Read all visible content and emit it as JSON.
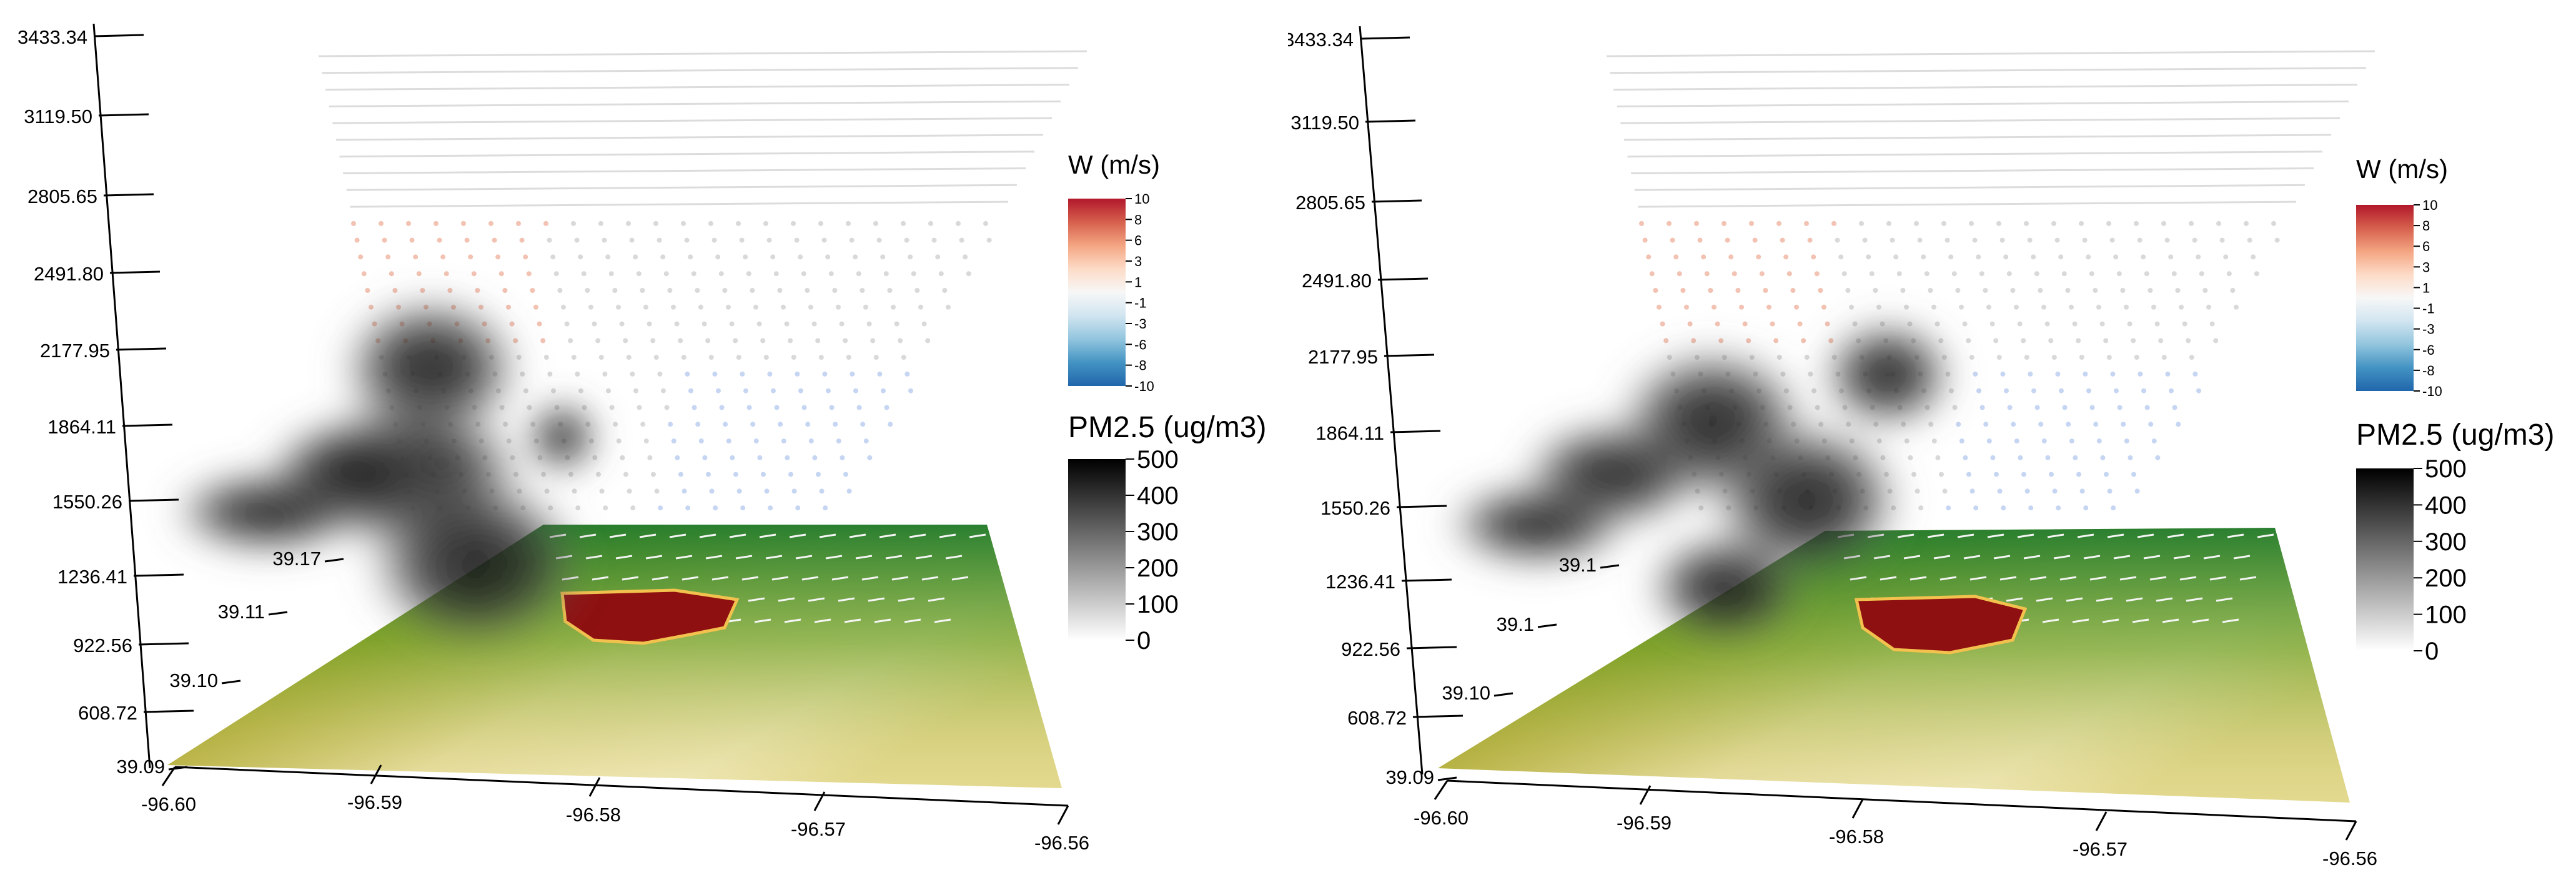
{
  "chart_data": [
    {
      "type": "3d-volume",
      "panel": "left",
      "z_ticks": [
        "3433.34",
        "3119.50",
        "2805.65",
        "2491.80",
        "2177.95",
        "1864.11",
        "1550.26",
        "1236.41",
        "922.56",
        "608.72"
      ],
      "y_ticks": [
        "39.09",
        "39.10",
        "39.11",
        "39.17"
      ],
      "x_ticks": [
        "-96.60",
        "-96.59",
        "-96.58",
        "-96.57",
        "-96.56"
      ],
      "w_legend": {
        "title": "W (m/s)",
        "labels": [
          "10",
          "8",
          "6",
          "3",
          "1",
          "-1",
          "-3",
          "-6",
          "-8",
          "-10"
        ],
        "colors": [
          "#b2182b",
          "#d6604d",
          "#f4a582",
          "#fddbc7",
          "#f7f7f7",
          "#d1e5f0",
          "#92c5de",
          "#4393c3",
          "#2166ac"
        ]
      },
      "pm_legend": {
        "title": "PM2.5 (ug/m3)",
        "labels": [
          "500",
          "400",
          "300",
          "200",
          "100",
          "0"
        ],
        "colors": [
          "#000000",
          "#ffffff"
        ]
      }
    },
    {
      "type": "3d-volume",
      "panel": "right",
      "z_ticks": [
        "3433.34",
        "3119.50",
        "2805.65",
        "2491.80",
        "2177.95",
        "1864.11",
        "1550.26",
        "1236.41",
        "922.56",
        "608.72"
      ],
      "y_ticks": [
        "39.09",
        "39.10",
        "39.1",
        "39.1"
      ],
      "x_ticks": [
        "-96.60",
        "-96.59",
        "-96.58",
        "-96.57",
        "-96.56"
      ],
      "w_legend": {
        "title": "W (m/s)",
        "labels": [
          "10",
          "8",
          "6",
          "3",
          "1",
          "-1",
          "-3",
          "-6",
          "-8",
          "-10"
        ],
        "colors": [
          "#b2182b",
          "#d6604d",
          "#f4a582",
          "#fddbc7",
          "#f7f7f7",
          "#d1e5f0",
          "#92c5de",
          "#4393c3",
          "#2166ac"
        ]
      },
      "pm_legend": {
        "title": "PM2.5 (ug/m3)",
        "labels": [
          "500",
          "400",
          "300",
          "200",
          "100",
          "0"
        ],
        "colors": [
          "#000000",
          "#ffffff"
        ]
      }
    }
  ]
}
